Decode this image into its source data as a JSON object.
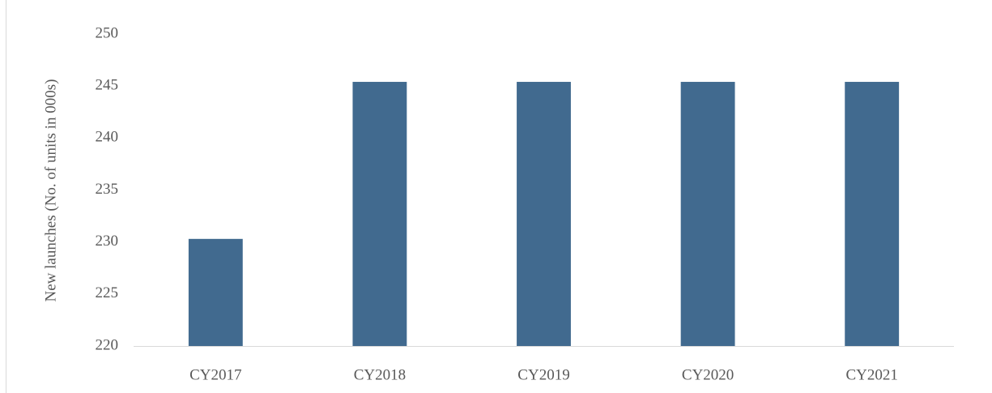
{
  "chart_data": {
    "type": "bar",
    "y_label": "New launches (No. of units in 000s)",
    "categories": [
      "CY2017",
      "CY2018",
      "CY2019",
      "CY2020",
      "CY2021"
    ],
    "values": [
      230.3,
      245.4,
      245.4,
      245.4,
      245.4
    ],
    "color": "#416a8f",
    "ylim": [
      220,
      250
    ],
    "yticks": [
      220,
      225,
      230,
      235,
      240,
      245,
      250
    ],
    "grid": false
  }
}
